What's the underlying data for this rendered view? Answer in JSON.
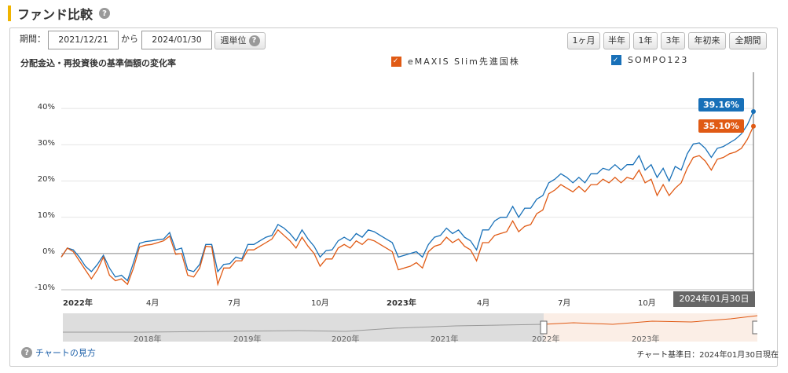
{
  "header": {
    "title": "ファンド比較",
    "help_icon": "?"
  },
  "period": {
    "label": "期間：",
    "from": "2021/12/21",
    "sep": "から",
    "to": "2024/01/30",
    "unit_button": "週単位",
    "unit_help": "?"
  },
  "range_buttons": [
    "1ヶ月",
    "半年",
    "1年",
    "3年",
    "年初来",
    "全期間"
  ],
  "chart_title": "分配金込・再投資後の基準価額の変化率",
  "legend": [
    {
      "name": "eMAXIS Slim先進国株",
      "color": "#e05a14",
      "check": "✓"
    },
    {
      "name": "SOMPO123",
      "color": "#1870b8",
      "check": "✓"
    }
  ],
  "end_labels": {
    "blue": "39.16%",
    "orange": "35.10%"
  },
  "date_marker": "2024年01月30日",
  "navigator_ticks": [
    "2018年",
    "2019年",
    "2020年",
    "2021年",
    "2022年",
    "2023年"
  ],
  "footer": {
    "help_link": "チャートの見方",
    "help_icon": "?",
    "basis": "チャート基準日：2024年01月30日現在"
  },
  "chart_data": {
    "type": "line",
    "y_ticks": [
      "40%",
      "30%",
      "20%",
      "10%",
      "0%",
      "-10%"
    ],
    "ylim": [
      -10,
      50
    ],
    "x_ticks": [
      {
        "label": "2022年",
        "bold": true
      },
      {
        "label": "4月",
        "bold": false
      },
      {
        "label": "7月",
        "bold": false
      },
      {
        "label": "10月",
        "bold": false
      },
      {
        "label": "2023年",
        "bold": true
      },
      {
        "label": "4月",
        "bold": false
      },
      {
        "label": "7月",
        "bold": false
      },
      {
        "label": "10月",
        "bold": false
      }
    ],
    "series": [
      {
        "name": "SOMPO123",
        "color": "#1870b8",
        "values": [
          -1,
          1.5,
          1,
          -1,
          -3.5,
          -5,
          -3,
          -0.5,
          -4,
          -6.5,
          -6,
          -7.5,
          -2.5,
          2.8,
          3.3,
          3.5,
          3.8,
          4,
          5.8,
          1,
          1.5,
          -4.5,
          -5,
          -3,
          2.5,
          2.5,
          -5,
          -3,
          -2.8,
          -1,
          -1.5,
          2.5,
          2.5,
          3.5,
          4.5,
          5,
          8,
          7,
          5.5,
          3.5,
          6.5,
          4,
          2,
          -1,
          0.8,
          1,
          3.5,
          4.5,
          3.5,
          5.5,
          4.5,
          6.5,
          6,
          5,
          4,
          3,
          -1,
          -0.5,
          0,
          0.5,
          -1,
          2.5,
          4.5,
          5,
          7,
          5.5,
          6.5,
          4.5,
          3.5,
          1,
          6.5,
          6.5,
          9,
          10,
          10,
          13,
          10,
          12.5,
          12.5,
          15,
          16,
          19.5,
          20.5,
          22,
          21,
          19.5,
          21,
          19.5,
          22,
          22,
          23.5,
          23,
          24.5,
          23,
          24.5,
          24.5,
          27,
          23,
          24.5,
          21,
          23.5,
          20,
          24,
          23,
          27.5,
          30.2,
          30.5,
          29,
          26.5,
          29,
          29.5,
          30.5,
          31.5,
          33,
          35.5,
          39.16
        ]
      },
      {
        "name": "eMAXIS Slim先進国株",
        "color": "#e05a14",
        "values": [
          -1,
          1.5,
          0.5,
          -2,
          -4.5,
          -7,
          -4.5,
          -1,
          -6,
          -7.5,
          -7,
          -8.5,
          -4,
          1.8,
          2.3,
          2.5,
          3,
          3.5,
          4.8,
          -0.2,
          0,
          -6,
          -6.5,
          -4,
          2,
          1.8,
          -8.5,
          -4,
          -4,
          -2,
          -2,
          1,
          1,
          2,
          3,
          4,
          6.5,
          5,
          3.5,
          1.5,
          4.5,
          2,
          0,
          -3.5,
          -1.5,
          -1.5,
          1.5,
          2.5,
          1.5,
          3.5,
          2.5,
          4,
          3.5,
          2.5,
          1.5,
          0.5,
          -4.5,
          -4,
          -3.5,
          -2.5,
          -4,
          0.5,
          2,
          2.5,
          4.5,
          3,
          4,
          2,
          1,
          -2,
          3,
          3,
          5,
          5.5,
          6,
          9,
          6,
          7.5,
          8,
          11,
          12,
          16.5,
          17.5,
          19,
          18,
          17,
          18.5,
          17,
          19,
          19,
          20.5,
          19.5,
          21,
          19.5,
          21,
          20.5,
          23,
          19.5,
          20.5,
          16,
          19,
          16,
          18,
          19.5,
          23.5,
          26.5,
          27,
          25.5,
          23,
          26,
          26.5,
          27.5,
          28,
          29,
          31.5,
          35.1
        ]
      }
    ]
  }
}
